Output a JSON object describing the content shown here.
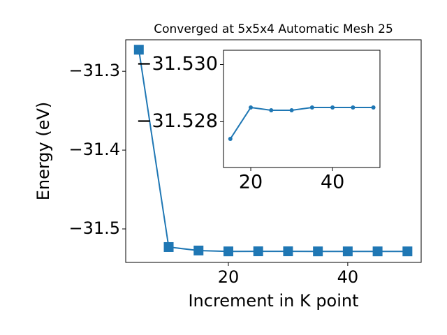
{
  "chart_data": [
    {
      "type": "line",
      "title": "Converged at 5x5x4 Automatic Mesh 25",
      "x_label": "Increment in K point",
      "y_label": "Energy (eV)",
      "x": [
        5,
        10,
        15,
        20,
        25,
        30,
        35,
        40,
        45,
        50
      ],
      "series": [
        {
          "name": "energy",
          "color": "#1f77b4",
          "marker": "square",
          "values": [
            -31.2726,
            -31.523,
            -31.5274,
            -31.5285,
            -31.5284,
            -31.5284,
            -31.5285,
            -31.5285,
            -31.5285,
            -31.5285
          ]
        }
      ],
      "xlim": [
        2.8,
        52.3
      ],
      "xticks": [
        20,
        40
      ],
      "ylim": [
        -31.5425,
        -31.26
      ],
      "yticks": [
        {
          "value": -31.5,
          "label": "−31.5"
        },
        {
          "value": -31.4,
          "label": "−31.4"
        },
        {
          "value": -31.3,
          "label": "−31.3"
        }
      ]
    },
    {
      "type": "line",
      "x": [
        15,
        20,
        25,
        30,
        35,
        40,
        45,
        50
      ],
      "series": [
        {
          "name": "energy",
          "color": "#1f77b4",
          "marker": "circle",
          "values": [
            -31.5274,
            -31.5285,
            -31.5284,
            -31.5284,
            -31.5285,
            -31.5285,
            -31.5285,
            -31.5285
          ]
        }
      ],
      "xlim": [
        13.33,
        51.6
      ],
      "xticks": [
        20,
        40
      ],
      "ylim": [
        -31.5264,
        -31.5305
      ],
      "yticks": [
        {
          "value": -31.528,
          "label": "−31.528"
        },
        {
          "value": -31.53,
          "label": "−31.530"
        }
      ]
    }
  ]
}
